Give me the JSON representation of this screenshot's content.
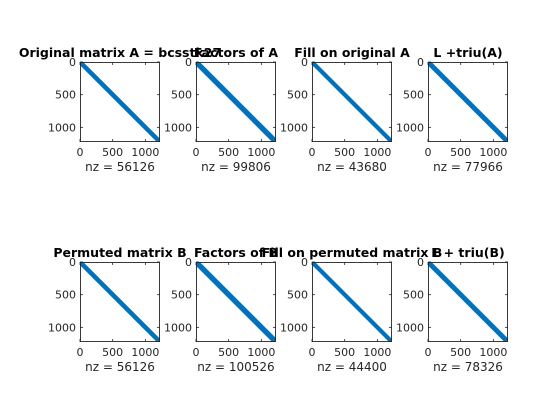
{
  "figure": {
    "background": "#ffffff",
    "marker_color": "#0072bd",
    "axis_color": "#262626"
  },
  "chart_data": [
    {
      "type": "scatter",
      "subtype": "sparsity-pattern",
      "title": "Original matrix A = bcsstk27",
      "xlabel": "nz = 56126",
      "matrix_size": 1224,
      "nonzeros": 56126,
      "pattern": "banded-diagonal",
      "band": [
        [
          0,
          0
        ],
        [
          1224,
          1224
        ]
      ],
      "xlim": [
        0,
        1224
      ],
      "ylim": [
        0,
        1224
      ],
      "y_reversed": true,
      "xticks": [
        0,
        500,
        1000
      ],
      "yticks": [
        0,
        500,
        1000
      ]
    },
    {
      "type": "scatter",
      "subtype": "sparsity-pattern",
      "title": "Factors of A",
      "xlabel": "nz = 99806",
      "matrix_size": 1224,
      "nonzeros": 99806,
      "pattern": "banded-diagonal",
      "band": [
        [
          0,
          0
        ],
        [
          1224,
          1224
        ]
      ],
      "xlim": [
        0,
        1224
      ],
      "ylim": [
        0,
        1224
      ],
      "y_reversed": true,
      "xticks": [
        0,
        500,
        1000
      ],
      "yticks": [
        0,
        500,
        1000
      ]
    },
    {
      "type": "scatter",
      "subtype": "sparsity-pattern",
      "title": "Fill on original A",
      "xlabel": "nz = 43680",
      "matrix_size": 1224,
      "nonzeros": 43680,
      "pattern": "banded-diagonal",
      "band": [
        [
          0,
          0
        ],
        [
          1224,
          1224
        ]
      ],
      "xlim": [
        0,
        1224
      ],
      "ylim": [
        0,
        1224
      ],
      "y_reversed": true,
      "xticks": [
        0,
        500,
        1000
      ],
      "yticks": [
        0,
        500,
        1000
      ]
    },
    {
      "type": "scatter",
      "subtype": "sparsity-pattern",
      "title": "L +triu(A)",
      "xlabel": "nz = 77966",
      "matrix_size": 1224,
      "nonzeros": 77966,
      "pattern": "banded-diagonal",
      "band": [
        [
          0,
          0
        ],
        [
          1224,
          1224
        ]
      ],
      "xlim": [
        0,
        1224
      ],
      "ylim": [
        0,
        1224
      ],
      "y_reversed": true,
      "xticks": [
        0,
        500,
        1000
      ],
      "yticks": [
        0,
        500,
        1000
      ]
    },
    {
      "type": "scatter",
      "subtype": "sparsity-pattern",
      "title": "Permuted matrix B",
      "xlabel": "nz = 56126",
      "matrix_size": 1224,
      "nonzeros": 56126,
      "pattern": "banded-diagonal",
      "band": [
        [
          0,
          0
        ],
        [
          1224,
          1224
        ]
      ],
      "xlim": [
        0,
        1224
      ],
      "ylim": [
        0,
        1224
      ],
      "y_reversed": true,
      "xticks": [
        0,
        500,
        1000
      ],
      "yticks": [
        0,
        500,
        1000
      ]
    },
    {
      "type": "scatter",
      "subtype": "sparsity-pattern",
      "title": "Factors of B",
      "xlabel": "nz = 100526",
      "matrix_size": 1224,
      "nonzeros": 100526,
      "pattern": "banded-diagonal",
      "band": [
        [
          0,
          0
        ],
        [
          1224,
          1224
        ]
      ],
      "xlim": [
        0,
        1224
      ],
      "ylim": [
        0,
        1224
      ],
      "y_reversed": true,
      "xticks": [
        0,
        500,
        1000
      ],
      "yticks": [
        0,
        500,
        1000
      ]
    },
    {
      "type": "scatter",
      "subtype": "sparsity-pattern",
      "title": "Fill on permuted matrix B",
      "xlabel": "nz = 44400",
      "matrix_size": 1224,
      "nonzeros": 44400,
      "pattern": "banded-diagonal",
      "band": [
        [
          0,
          0
        ],
        [
          1224,
          1224
        ]
      ],
      "xlim": [
        0,
        1224
      ],
      "ylim": [
        0,
        1224
      ],
      "y_reversed": true,
      "xticks": [
        0,
        500,
        1000
      ],
      "yticks": [
        0,
        500,
        1000
      ]
    },
    {
      "type": "scatter",
      "subtype": "sparsity-pattern",
      "title": "L + triu(B)",
      "xlabel": "nz = 78326",
      "matrix_size": 1224,
      "nonzeros": 78326,
      "pattern": "banded-diagonal",
      "band": [
        [
          0,
          0
        ],
        [
          1224,
          1224
        ]
      ],
      "xlim": [
        0,
        1224
      ],
      "ylim": [
        0,
        1224
      ],
      "y_reversed": true,
      "xticks": [
        0,
        500,
        1000
      ],
      "yticks": [
        0,
        500,
        1000
      ]
    }
  ]
}
